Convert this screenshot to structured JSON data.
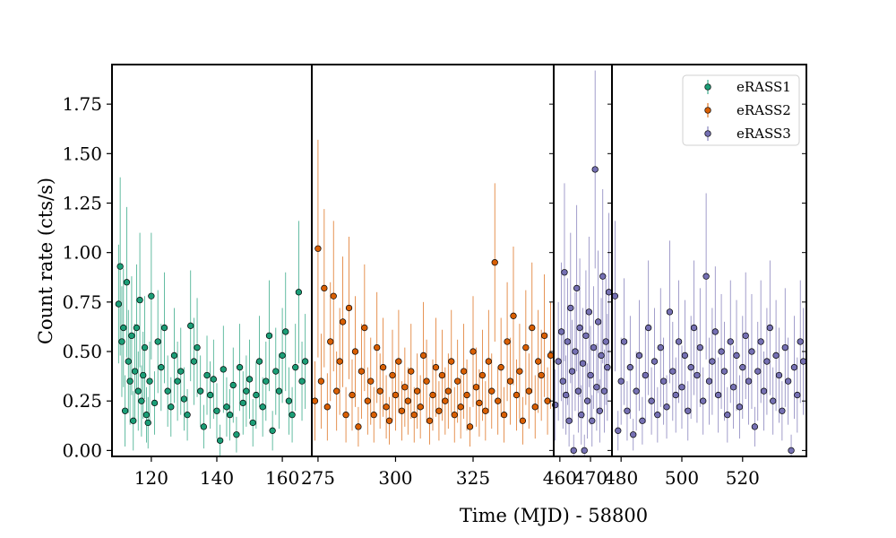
{
  "chart_data": {
    "type": "scatter",
    "title": "",
    "xlabel": "Time (MJD) - 58800",
    "ylabel": "Count rate (cts/s)",
    "ylim": [
      -0.03,
      1.95
    ],
    "yticks": [
      0.0,
      0.25,
      0.5,
      0.75,
      1.0,
      1.25,
      1.5,
      1.75
    ],
    "ytick_labels": [
      "0.00",
      "0.25",
      "0.50",
      "0.75",
      "1.00",
      "1.25",
      "1.50",
      "1.75"
    ],
    "legend_position": "top-right",
    "grid": false,
    "panels": [
      {
        "xlim": [
          108,
          169
        ],
        "xticks": [
          120,
          140,
          160
        ],
        "xtick_labels": [
          "120",
          "140",
          "160"
        ]
      },
      {
        "xlim": [
          273,
          351
        ],
        "xticks": [
          275,
          300,
          325
        ],
        "xtick_labels": [
          "275",
          "300",
          "325"
        ]
      },
      {
        "xlim": [
          458,
          477
        ],
        "xticks": [
          460,
          470
        ],
        "xtick_labels": [
          "460",
          "470"
        ]
      },
      {
        "xlim": [
          477,
          541
        ],
        "xticks": [
          480,
          500,
          520
        ],
        "xtick_labels": [
          "480",
          "500",
          "520"
        ]
      }
    ],
    "series": [
      {
        "name": "eRASS1",
        "color": "#1b9e77",
        "x": [
          110.0,
          110.5,
          111.0,
          111.5,
          112.0,
          112.5,
          113.0,
          113.5,
          114.0,
          114.5,
          115.0,
          115.5,
          116.0,
          116.5,
          117.0,
          117.5,
          118.0,
          118.5,
          119.0,
          119.5,
          120.0,
          121.0,
          122.0,
          123.0,
          124.0,
          125.0,
          126.0,
          127.0,
          128.0,
          129.0,
          130.0,
          131.0,
          132.0,
          133.0,
          134.0,
          135.0,
          136.0,
          137.0,
          138.0,
          139.0,
          140.0,
          141.0,
          142.0,
          143.0,
          144.0,
          145.0,
          146.0,
          147.0,
          148.0,
          149.0,
          150.0,
          151.0,
          152.0,
          153.0,
          154.0,
          155.0,
          156.0,
          157.0,
          158.0,
          159.0,
          160.0,
          161.0,
          162.0,
          163.0,
          164.0,
          165.0,
          166.0,
          167.0
        ],
        "y": [
          0.74,
          0.93,
          0.55,
          0.62,
          0.2,
          0.85,
          0.45,
          0.35,
          0.58,
          0.15,
          0.4,
          0.62,
          0.3,
          0.76,
          0.25,
          0.38,
          0.52,
          0.18,
          0.14,
          0.35,
          0.78,
          0.24,
          0.55,
          0.42,
          0.62,
          0.3,
          0.22,
          0.48,
          0.35,
          0.4,
          0.26,
          0.18,
          0.63,
          0.45,
          0.52,
          0.3,
          0.12,
          0.38,
          0.28,
          0.36,
          0.2,
          0.05,
          0.41,
          0.22,
          0.18,
          0.33,
          0.08,
          0.42,
          0.24,
          0.3,
          0.36,
          0.14,
          0.28,
          0.45,
          0.22,
          0.35,
          0.58,
          0.1,
          0.4,
          0.3,
          0.48,
          0.6,
          0.25,
          0.18,
          0.42,
          0.8,
          0.35,
          0.45
        ],
        "yerr": [
          0.3,
          0.45,
          0.28,
          0.3,
          0.18,
          0.38,
          0.26,
          0.22,
          0.3,
          0.15,
          0.24,
          0.32,
          0.2,
          0.34,
          0.18,
          0.22,
          0.26,
          0.14,
          0.13,
          0.2,
          0.32,
          0.16,
          0.26,
          0.22,
          0.28,
          0.18,
          0.15,
          0.24,
          0.2,
          0.22,
          0.16,
          0.13,
          0.28,
          0.22,
          0.25,
          0.18,
          0.11,
          0.2,
          0.17,
          0.2,
          0.14,
          0.08,
          0.22,
          0.15,
          0.13,
          0.19,
          0.09,
          0.22,
          0.16,
          0.18,
          0.2,
          0.12,
          0.17,
          0.23,
          0.15,
          0.2,
          0.28,
          0.1,
          0.22,
          0.19,
          0.24,
          0.3,
          0.17,
          0.14,
          0.22,
          0.36,
          0.2,
          0.24
        ]
      },
      {
        "name": "eRASS2",
        "color": "#d95f02",
        "x": [
          274,
          275,
          276,
          277,
          278,
          279,
          280,
          281,
          282,
          283,
          284,
          285,
          286,
          287,
          288,
          289,
          290,
          291,
          292,
          293,
          294,
          295,
          296,
          297,
          298,
          299,
          300,
          301,
          302,
          303,
          304,
          305,
          306,
          307,
          308,
          309,
          310,
          311,
          312,
          313,
          314,
          315,
          316,
          317,
          318,
          319,
          320,
          321,
          322,
          323,
          324,
          325,
          326,
          327,
          328,
          329,
          330,
          331,
          332,
          333,
          334,
          335,
          336,
          337,
          338,
          339,
          340,
          341,
          342,
          343,
          344,
          345,
          346,
          347,
          348,
          349,
          350
        ],
        "y": [
          0.25,
          1.02,
          0.35,
          0.82,
          0.22,
          0.55,
          0.78,
          0.3,
          0.45,
          0.65,
          0.18,
          0.72,
          0.28,
          0.5,
          0.12,
          0.4,
          0.62,
          0.25,
          0.35,
          0.18,
          0.52,
          0.3,
          0.42,
          0.22,
          0.15,
          0.38,
          0.28,
          0.45,
          0.2,
          0.32,
          0.25,
          0.4,
          0.18,
          0.3,
          0.22,
          0.48,
          0.35,
          0.15,
          0.28,
          0.42,
          0.2,
          0.38,
          0.25,
          0.3,
          0.45,
          0.18,
          0.35,
          0.22,
          0.4,
          0.28,
          0.12,
          0.5,
          0.32,
          0.24,
          0.38,
          0.2,
          0.45,
          0.3,
          0.95,
          0.25,
          0.42,
          0.18,
          0.55,
          0.35,
          0.68,
          0.28,
          0.4,
          0.15,
          0.52,
          0.3,
          0.62,
          0.22,
          0.45,
          0.38,
          0.58,
          0.25,
          0.48
        ],
        "yerr": [
          0.2,
          0.55,
          0.24,
          0.4,
          0.17,
          0.3,
          0.38,
          0.2,
          0.27,
          0.33,
          0.14,
          0.36,
          0.18,
          0.28,
          0.1,
          0.24,
          0.32,
          0.17,
          0.22,
          0.14,
          0.28,
          0.19,
          0.25,
          0.16,
          0.12,
          0.23,
          0.18,
          0.26,
          0.15,
          0.2,
          0.17,
          0.24,
          0.14,
          0.19,
          0.16,
          0.27,
          0.21,
          0.12,
          0.18,
          0.25,
          0.15,
          0.23,
          0.17,
          0.19,
          0.26,
          0.14,
          0.21,
          0.16,
          0.24,
          0.18,
          0.1,
          0.28,
          0.2,
          0.17,
          0.23,
          0.15,
          0.26,
          0.19,
          0.4,
          0.17,
          0.25,
          0.14,
          0.3,
          0.22,
          0.35,
          0.18,
          0.24,
          0.12,
          0.29,
          0.19,
          0.33,
          0.16,
          0.26,
          0.23,
          0.31,
          0.17,
          0.27
        ]
      },
      {
        "name": "eRASS3",
        "color": "#7570b3",
        "x": [
          458.5,
          459.5,
          460.5,
          461.0,
          461.5,
          462.0,
          462.5,
          463.0,
          463.5,
          464.0,
          464.5,
          465.0,
          465.5,
          466.0,
          466.5,
          467.0,
          467.5,
          468.0,
          468.5,
          469.0,
          469.5,
          470.0,
          470.5,
          471.0,
          471.5,
          472.0,
          472.5,
          473.0,
          473.5,
          474.0,
          474.5,
          475.0,
          475.5,
          476.0,
          478,
          479,
          480,
          481,
          482,
          483,
          484,
          485,
          486,
          487,
          488,
          489,
          490,
          491,
          492,
          493,
          494,
          495,
          496,
          497,
          498,
          499,
          500,
          501,
          502,
          503,
          504,
          505,
          506,
          507,
          508,
          509,
          510,
          511,
          512,
          513,
          514,
          515,
          516,
          517,
          518,
          519,
          520,
          521,
          522,
          523,
          524,
          525,
          526,
          527,
          528,
          529,
          530,
          531,
          532,
          533,
          534,
          535,
          536,
          537,
          538,
          539,
          540
        ],
        "y": [
          0.23,
          0.45,
          0.6,
          0.35,
          0.9,
          0.28,
          0.55,
          0.15,
          0.72,
          0.4,
          0.0,
          0.5,
          0.82,
          0.3,
          0.62,
          0.18,
          0.44,
          0.0,
          0.58,
          0.25,
          0.7,
          0.38,
          0.15,
          0.52,
          1.42,
          0.32,
          0.65,
          0.2,
          0.48,
          0.88,
          0.3,
          0.55,
          0.42,
          0.8,
          0.78,
          0.1,
          0.35,
          0.55,
          0.2,
          0.42,
          0.08,
          0.3,
          0.48,
          0.15,
          0.38,
          0.62,
          0.25,
          0.45,
          0.18,
          0.52,
          0.35,
          0.22,
          0.7,
          0.4,
          0.28,
          0.55,
          0.32,
          0.48,
          0.2,
          0.42,
          0.62,
          0.38,
          0.52,
          0.25,
          0.88,
          0.35,
          0.45,
          0.6,
          0.28,
          0.5,
          0.4,
          0.18,
          0.55,
          0.32,
          0.48,
          0.22,
          0.42,
          0.58,
          0.35,
          0.5,
          0.12,
          0.4,
          0.55,
          0.3,
          0.45,
          0.62,
          0.25,
          0.48,
          0.38,
          0.2,
          0.52,
          0.35,
          0.0,
          0.42,
          0.28,
          0.55,
          0.45
        ],
        "yerr": [
          0.18,
          0.3,
          0.35,
          0.24,
          0.45,
          0.2,
          0.32,
          0.13,
          0.38,
          0.26,
          0.08,
          0.3,
          0.42,
          0.21,
          0.35,
          0.15,
          0.28,
          0.08,
          0.33,
          0.19,
          0.38,
          0.25,
          0.13,
          0.31,
          0.5,
          0.22,
          0.36,
          0.16,
          0.29,
          0.44,
          0.21,
          0.32,
          0.27,
          0.4,
          0.38,
          0.1,
          0.22,
          0.32,
          0.15,
          0.26,
          0.08,
          0.2,
          0.28,
          0.12,
          0.24,
          0.34,
          0.17,
          0.27,
          0.14,
          0.3,
          0.22,
          0.16,
          0.36,
          0.25,
          0.19,
          0.31,
          0.21,
          0.28,
          0.15,
          0.26,
          0.34,
          0.24,
          0.3,
          0.17,
          0.42,
          0.22,
          0.27,
          0.33,
          0.19,
          0.29,
          0.25,
          0.14,
          0.31,
          0.21,
          0.28,
          0.16,
          0.26,
          0.32,
          0.22,
          0.29,
          0.1,
          0.25,
          0.31,
          0.2,
          0.27,
          0.34,
          0.17,
          0.28,
          0.24,
          0.15,
          0.3,
          0.22,
          0.08,
          0.26,
          0.19,
          0.31,
          0.27
        ]
      }
    ]
  }
}
